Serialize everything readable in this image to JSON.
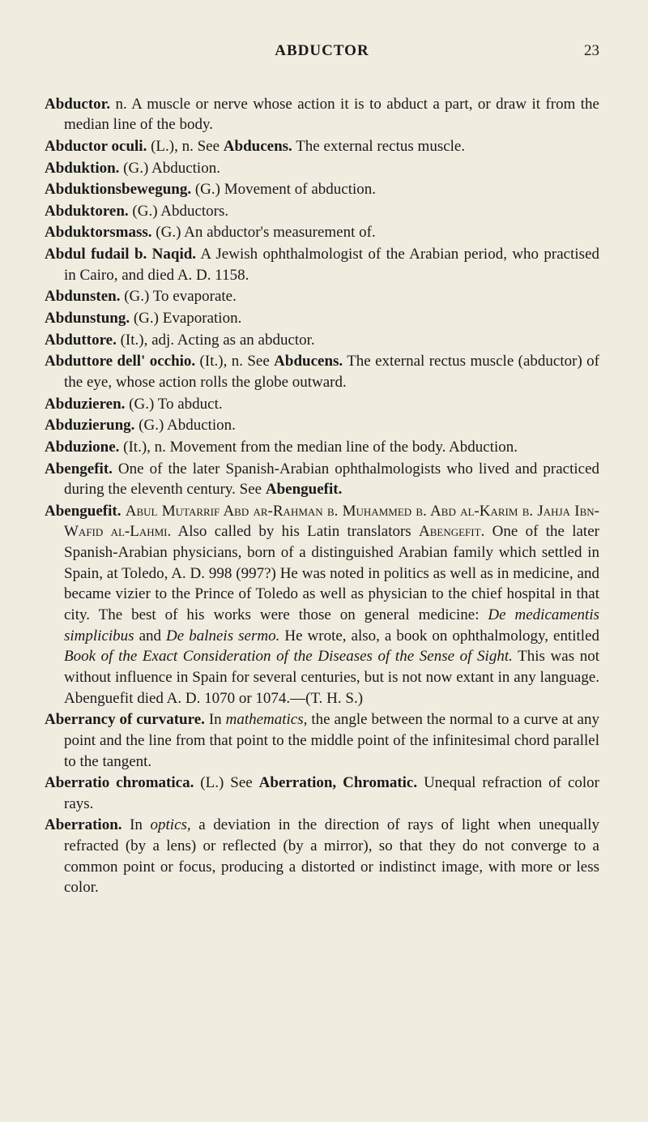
{
  "header": {
    "title": "ABDUCTOR",
    "page": "23"
  },
  "entries": [
    {
      "html": "<span class='bold'>Abductor.</span> n. A muscle or nerve whose action it is to abduct a part, or draw it from the median line of the body."
    },
    {
      "html": "<span class='bold'>Abductor oculi.</span> (L.), n. See <span class='bold'>Abducens.</span> The external rectus muscle."
    },
    {
      "html": "<span class='bold'>Abduktion.</span> (G.) Abduction."
    },
    {
      "html": "<span class='bold'>Abduktionsbewegung.</span> (G.) Movement of abduction."
    },
    {
      "html": "<span class='bold'>Abduktoren.</span> (G.) Abductors."
    },
    {
      "html": "<span class='bold'>Abduktorsmass.</span> (G.) An abductor's measurement of."
    },
    {
      "html": "<span class='bold'>Abdul fudail b. Naqid.</span> A Jewish ophthalmologist of the Arabian period, who practised in Cairo, and died A. D. 1158."
    },
    {
      "html": "<span class='bold'>Abdunsten.</span> (G.) To evaporate."
    },
    {
      "html": "<span class='bold'>Abdunstung.</span> (G.) Evaporation."
    },
    {
      "html": "<span class='bold'>Abduttore.</span> (It.), adj. Acting as an abductor."
    },
    {
      "html": "<span class='bold'>Abduttore dell' occhio.</span> (It.), n. See <span class='bold'>Abducens.</span> The external rectus muscle (abductor) of the eye, whose action rolls the globe outward."
    },
    {
      "html": "<span class='bold'>Abduzieren.</span> (G.) To abduct."
    },
    {
      "html": "<span class='bold'>Abduzierung.</span> (G.) Abduction."
    },
    {
      "html": "<span class='bold'>Abduzione.</span> (It.), n. Movement from the median line of the body. Abduction."
    },
    {
      "html": "<span class='bold'>Abengefit.</span> One of the later Spanish-Arabian ophthalmologists who lived and practiced during the eleventh century. See <span class='bold'>Abenguefit.</span>"
    },
    {
      "html": "<span class='bold'>Abenguefit.</span> <span class='sc'>Abul Mutarrif Abd ar-Rahman b. Muhammed b. Abd al-Karim b. Jahja Ibn-Wafid al-Lahmi.</span> Also called by his Latin translators <span class='sc'>Abengefit</span>. One of the later Spanish-Arabian physicians, born of a distinguished Arabian family which settled in Spain, at Toledo, A. D. 998 (997?) He was noted in politics as well as in medicine, and became vizier to the Prince of Toledo as well as physician to the chief hospital in that city. The best of his works were those on general medicine: <span class='ital'>De medicamentis simplicibus</span> and <span class='ital'>De balneis sermo.</span> He wrote, also, a book on ophthalmology, entitled <span class='ital'>Book of the Exact Consideration of the Diseases of the Sense of Sight.</span> This was not without influence in Spain for several centuries, but is not now extant in any language. Abenguefit died A. D. 1070 or 1074.—(T. H. S.)"
    },
    {
      "html": "<span class='bold'>Aberrancy of curvature.</span> In <span class='ital'>mathematics,</span> the angle between the normal to a curve at any point and the line from that point to the middle point of the infinitesimal chord parallel to the tangent."
    },
    {
      "html": "<span class='bold'>Aberratio chromatica.</span> (L.) See <span class='bold'>Aberration, Chromatic.</span> Unequal refraction of color rays."
    },
    {
      "html": "<span class='bold'>Aberration.</span> In <span class='ital'>optics,</span> a deviation in the direction of rays of light when unequally refracted (by a lens) or reflected (by a mirror), so that they do not converge to a common point or focus, producing a distorted or indistinct image, with more or less color."
    }
  ]
}
